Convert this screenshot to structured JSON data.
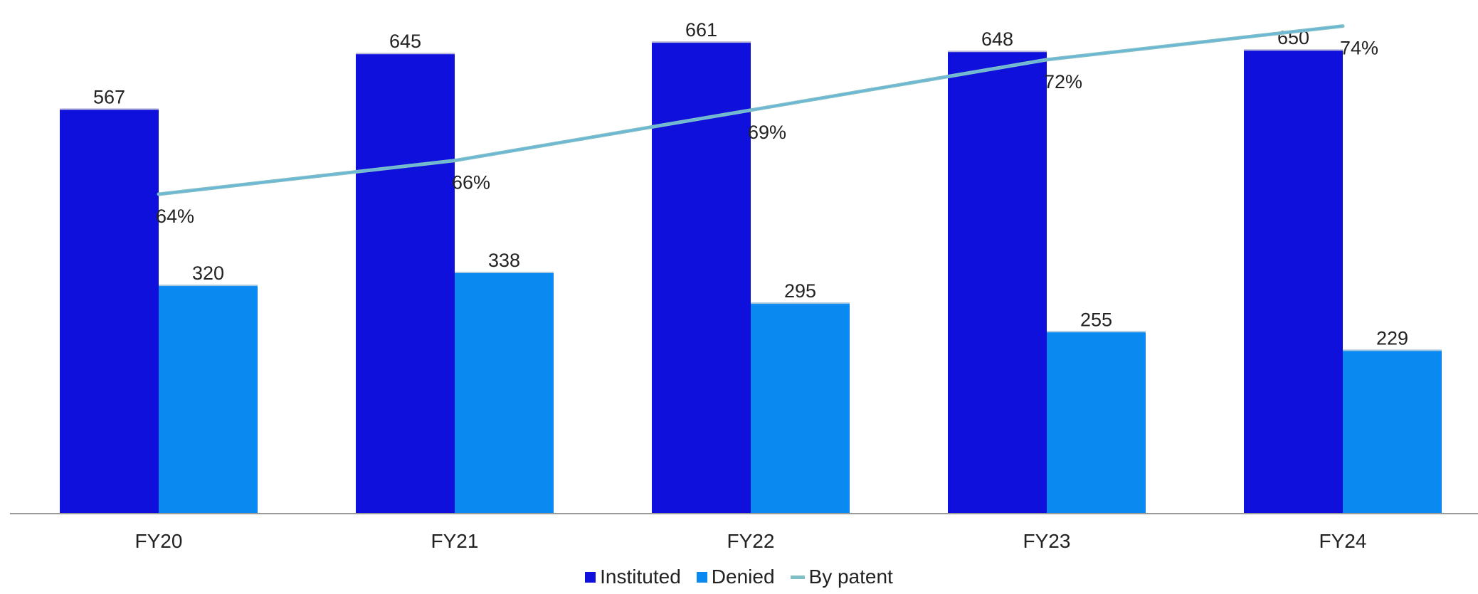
{
  "chart_data": {
    "type": "bar",
    "categories": [
      "FY20",
      "FY21",
      "FY22",
      "FY23",
      "FY24"
    ],
    "series": [
      {
        "name": "Instituted",
        "type": "bar",
        "values": [
          567,
          645,
          661,
          648,
          650
        ],
        "color": "#1010dd",
        "value_labels": [
          "567",
          "645",
          "661",
          "648",
          "650"
        ]
      },
      {
        "name": "Denied",
        "type": "bar",
        "values": [
          320,
          338,
          295,
          255,
          229
        ],
        "color": "#0a8af0",
        "value_labels": [
          "320",
          "338",
          "295",
          "255",
          "229"
        ]
      },
      {
        "name": "By patent",
        "type": "line",
        "values": [
          64,
          66,
          69,
          72,
          74
        ],
        "color": "#7fbfc6",
        "value_labels": [
          "64%",
          "66%",
          "69%",
          "72%",
          "74%"
        ],
        "unit": "%"
      }
    ],
    "ylim": [
      0,
      720
    ],
    "line_ylim": [
      45,
      75
    ],
    "axis_color": "#9a9a9a",
    "grid": false,
    "legend_position": "bottom",
    "title": "",
    "xlabel": "",
    "ylabel": ""
  }
}
